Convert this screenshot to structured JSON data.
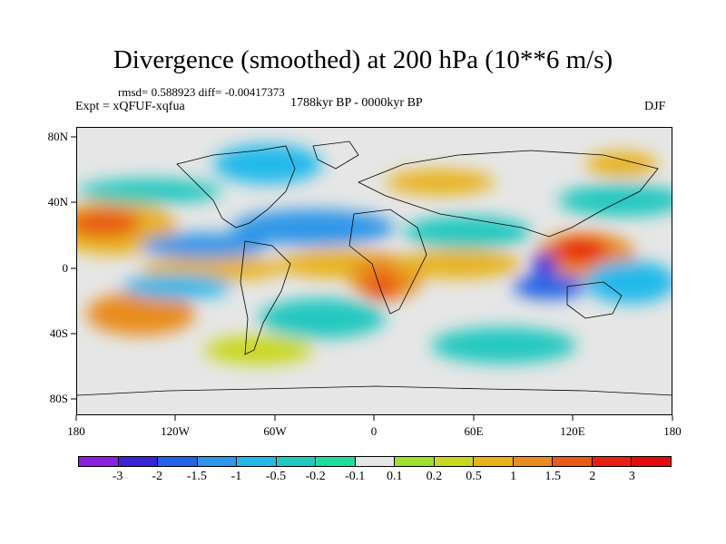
{
  "figure": {
    "title": "Divergence (smoothed) at 200 hPa (10**6 m/s)",
    "stats": "rmsd= 0.588923 diff= -0.00417373",
    "period": "1788kyr BP - 0000kyr BP",
    "experiment": "Expt = xQFUF-xqfua",
    "season": "DJF"
  },
  "axes": {
    "lat_labels": [
      "80N",
      "40N",
      "0",
      "40S",
      "80S"
    ],
    "lon_labels": [
      "180",
      "120W",
      "60W",
      "0",
      "60E",
      "120E",
      "180"
    ]
  },
  "colorbar": {
    "labels": [
      "-3",
      "-2",
      "-1.5",
      "-1",
      "-0.5",
      "-0.2",
      "-0.1",
      "0.1",
      "0.2",
      "0.5",
      "1",
      "1.5",
      "2",
      "3"
    ],
    "colors": [
      "#8c1ee0",
      "#3a23d9",
      "#2364e6",
      "#2f96e8",
      "#22b9ea",
      "#20c8c0",
      "#1edca0",
      "#e6e6e6",
      "#9ee02a",
      "#c8d81e",
      "#e8b21a",
      "#e88c1e",
      "#e85a18",
      "#e82010",
      "#e60a0a"
    ]
  },
  "map": {
    "background_color": "#e6e6e6",
    "fields": [
      {
        "name": "north-pacific-positive",
        "value": 1.5,
        "lon": -150,
        "lat": 28
      },
      {
        "name": "south-pacific-positive",
        "value": 1.5,
        "lon": -140,
        "lat": -22
      },
      {
        "name": "equatorial-pacific-positive",
        "value": 0.5,
        "lon": -120,
        "lat": -2
      },
      {
        "name": "tropical-atlantic-positive",
        "value": 1.0,
        "lon": -30,
        "lat": -2
      },
      {
        "name": "central-africa-positive",
        "value": 2.0,
        "lon": 10,
        "lat": -10
      },
      {
        "name": "indian-ocean-positive",
        "value": 1.0,
        "lon": 70,
        "lat": 5
      },
      {
        "name": "west-pacific-positive",
        "value": 3.0,
        "lon": 135,
        "lat": 12
      },
      {
        "name": "maritime-negative",
        "value": -3.0,
        "lon": 100,
        "lat": 2
      },
      {
        "name": "north-atlantic-negative",
        "value": -1.0,
        "lon": -50,
        "lat": 20
      },
      {
        "name": "south-atlantic-negative",
        "value": -0.5,
        "lon": -20,
        "lat": -20
      },
      {
        "name": "arctic-negative",
        "value": -0.5,
        "lon": -100,
        "lat": 70
      }
    ]
  }
}
